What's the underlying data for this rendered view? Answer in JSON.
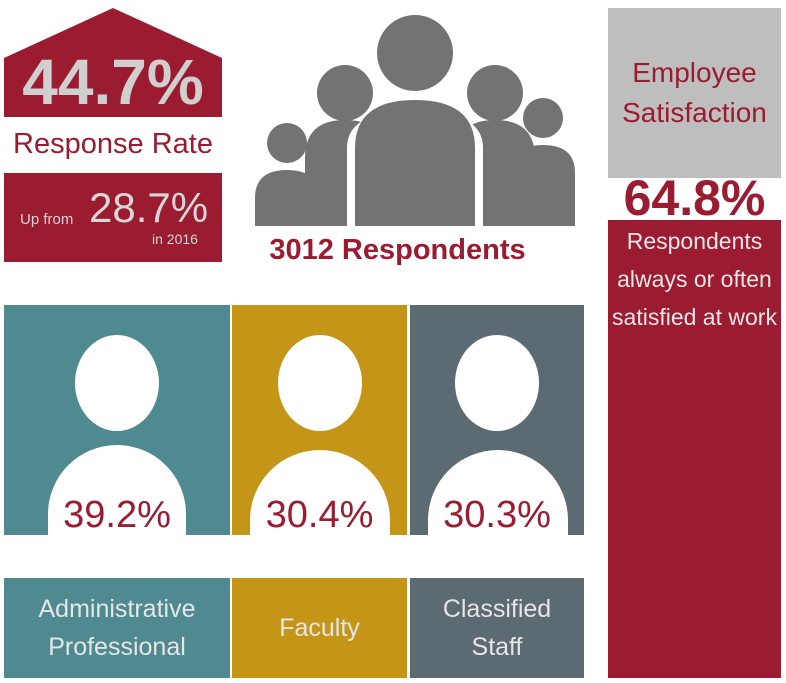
{
  "response": {
    "rate": "44.7%",
    "label": "Response Rate",
    "up_from": "Up from",
    "previous_rate": "28.7%",
    "previous_year": "in 2016"
  },
  "respondents": {
    "label": "3012 Respondents",
    "icon": "group-of-people-icon"
  },
  "satisfaction": {
    "title": "Employee Satisfaction",
    "value": "64.8%",
    "description": "Respondents always or often satisfied at work"
  },
  "groups": [
    {
      "name": "Administrative Professional",
      "percent": "39.2%",
      "color": "#4e8a8f"
    },
    {
      "name": "Faculty",
      "percent": "30.4%",
      "color": "#c49516"
    },
    {
      "name": "Classified Staff",
      "percent": "30.3%",
      "color": "#5c6a72"
    }
  ],
  "colors": {
    "accent": "#9b1b30",
    "icon_gray": "#737373",
    "panel_gray": "#bebebe"
  }
}
